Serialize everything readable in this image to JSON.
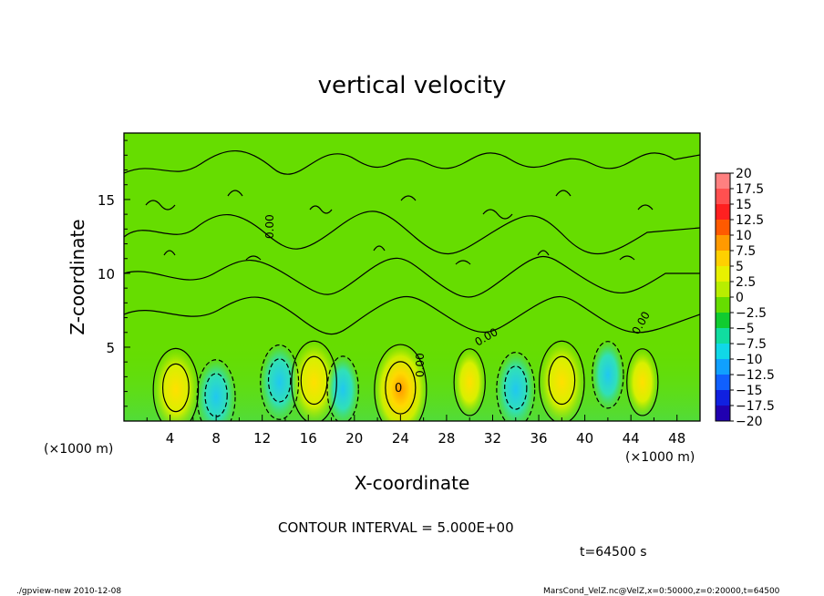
{
  "chart_data": {
    "type": "heatmap",
    "title": "vertical velocity",
    "xlabel": "X-coordinate",
    "ylabel": "Z-coordinate",
    "x_unit_left": "(×1000 m)",
    "x_unit_right": "(×1000 m)",
    "xlim": [
      0,
      50
    ],
    "ylim": [
      0,
      19.5
    ],
    "x_ticks": [
      4,
      8,
      12,
      16,
      20,
      24,
      28,
      32,
      36,
      40,
      44,
      48
    ],
    "y_ticks": [
      5,
      10,
      15
    ],
    "contour_interval_text": "CONTOUR INTERVAL = 5.000E+00",
    "time_text": "t=64500 s",
    "contour_labels": [
      "0.00",
      "0",
      "0.00",
      "0.00",
      "0.00"
    ],
    "colorbar": {
      "levels": [
        "20",
        "17.5",
        "15",
        "12.5",
        "10",
        "7.5",
        "5",
        "2.5",
        "0",
        "−2.5",
        "−5",
        "−7.5",
        "−10",
        "−12.5",
        "−15",
        "−17.5",
        "−20"
      ],
      "colors": [
        "#ff8080",
        "#ff5050",
        "#ff2020",
        "#ff5a00",
        "#ff9a00",
        "#ffd000",
        "#e8f000",
        "#b8ee00",
        "#66dd00",
        "#10cc30",
        "#10dda0",
        "#10d8e8",
        "#10a0ff",
        "#1060ff",
        "#1020e0",
        "#2000b0",
        "#6a00c0"
      ]
    },
    "features": [
      {
        "kind": "updraft",
        "x": 4.5,
        "z": 2.5,
        "peak": 7.5
      },
      {
        "kind": "downdraft",
        "x": 8,
        "z": 2.0,
        "peak": -5
      },
      {
        "kind": "downdraft",
        "x": 13.5,
        "z": 3.0,
        "peak": -5
      },
      {
        "kind": "updraft",
        "x": 16.5,
        "z": 3.0,
        "peak": 7.5
      },
      {
        "kind": "downdraft",
        "x": 19,
        "z": 2.5,
        "peak": -2.5
      },
      {
        "kind": "updraft",
        "x": 24,
        "z": 2.5,
        "peak": 10
      },
      {
        "kind": "updraft",
        "x": 30,
        "z": 3.0,
        "peak": 2.5
      },
      {
        "kind": "downdraft",
        "x": 34,
        "z": 2.5,
        "peak": -5
      },
      {
        "kind": "updraft",
        "x": 38,
        "z": 3.0,
        "peak": 7.5
      },
      {
        "kind": "downdraft",
        "x": 42,
        "z": 3.5,
        "peak": -2.5
      },
      {
        "kind": "updraft",
        "x": 45,
        "z": 3.0,
        "peak": 2.5
      }
    ],
    "grid": false,
    "legend": "right"
  },
  "footer": {
    "left": "./gpview-new   2010-12-08",
    "right": "MarsCond_VelZ.nc@VelZ,x=0:50000,z=0:20000,t=64500"
  }
}
